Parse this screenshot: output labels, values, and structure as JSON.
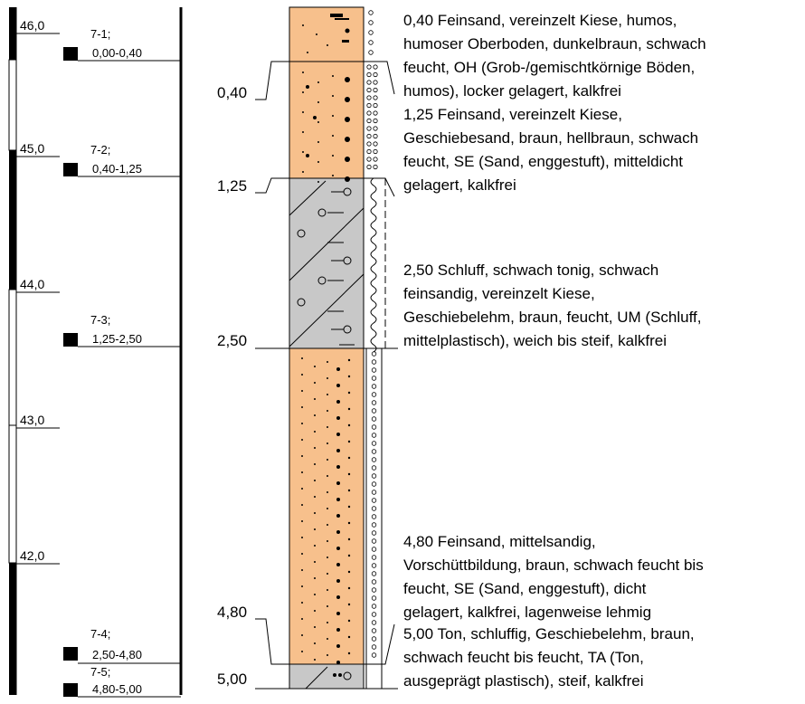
{
  "elevation_scale": [
    {
      "label": "46,0",
      "value": 46.0
    },
    {
      "label": "45,0",
      "value": 45.0
    },
    {
      "label": "44,0",
      "value": 44.0
    },
    {
      "label": "43,0",
      "value": 43.0
    },
    {
      "label": "42,0",
      "value": 42.0
    }
  ],
  "samples": [
    {
      "id": "7-1;",
      "range": "0,00-0,40"
    },
    {
      "id": "7-2;",
      "range": "0,40-1,25"
    },
    {
      "id": "7-3;",
      "range": "1,25-2,50"
    },
    {
      "id": "7-4;",
      "range": "2,50-4,80"
    },
    {
      "id": "7-5;",
      "range": "4,80-5,00"
    }
  ],
  "layers": [
    {
      "depth": 0.4,
      "depth_label": "0,40",
      "soil": "sand",
      "fill": "#f7c08c",
      "lines": [
        "0,40  Feinsand, vereinzelt Kiese, humos,",
        "humoser Oberboden, dunkelbraun, schwach",
        "feucht, OH (Grob-/gemischtkörnige Böden,",
        "humos), locker gelagert, kalkfrei"
      ]
    },
    {
      "depth": 1.25,
      "depth_label": "1,25",
      "soil": "sand",
      "fill": "#f7c08c",
      "lines": [
        "1,25  Feinsand, vereinzelt Kiese,",
        "Geschiebesand, braun, hellbraun, schwach",
        "feucht, SE (Sand, enggestuft), mitteldicht",
        "gelagert, kalkfrei"
      ]
    },
    {
      "depth": 2.5,
      "depth_label": "2,50",
      "soil": "till",
      "fill": "#c8c8c8",
      "lines": [
        "2,50  Schluff, schwach tonig, schwach",
        "feinsandig, vereinzelt Kiese,",
        "Geschiebelehm, braun, feucht, UM (Schluff,",
        "mittelplastisch), weich bis steif, kalkfrei"
      ]
    },
    {
      "depth": 4.8,
      "depth_label": "4,80",
      "soil": "sand",
      "fill": "#f7c08c",
      "lines": [
        "4,80  Feinsand, mittelsandig,",
        "Vorschüttbildung, braun, schwach feucht bis",
        "feucht, SE (Sand, enggestuft), dicht",
        "gelagert, kalkfrei, lagenweise lehmig"
      ]
    },
    {
      "depth": 5.0,
      "depth_label": "5,00",
      "soil": "till",
      "fill": "#c8c8c8",
      "lines": [
        "5,00  Ton, schluffig, Geschiebelehm, braun,",
        "schwach feucht bis feucht, TA (Ton,",
        "ausgeprägt plastisch), steif, kalkfrei"
      ]
    }
  ]
}
